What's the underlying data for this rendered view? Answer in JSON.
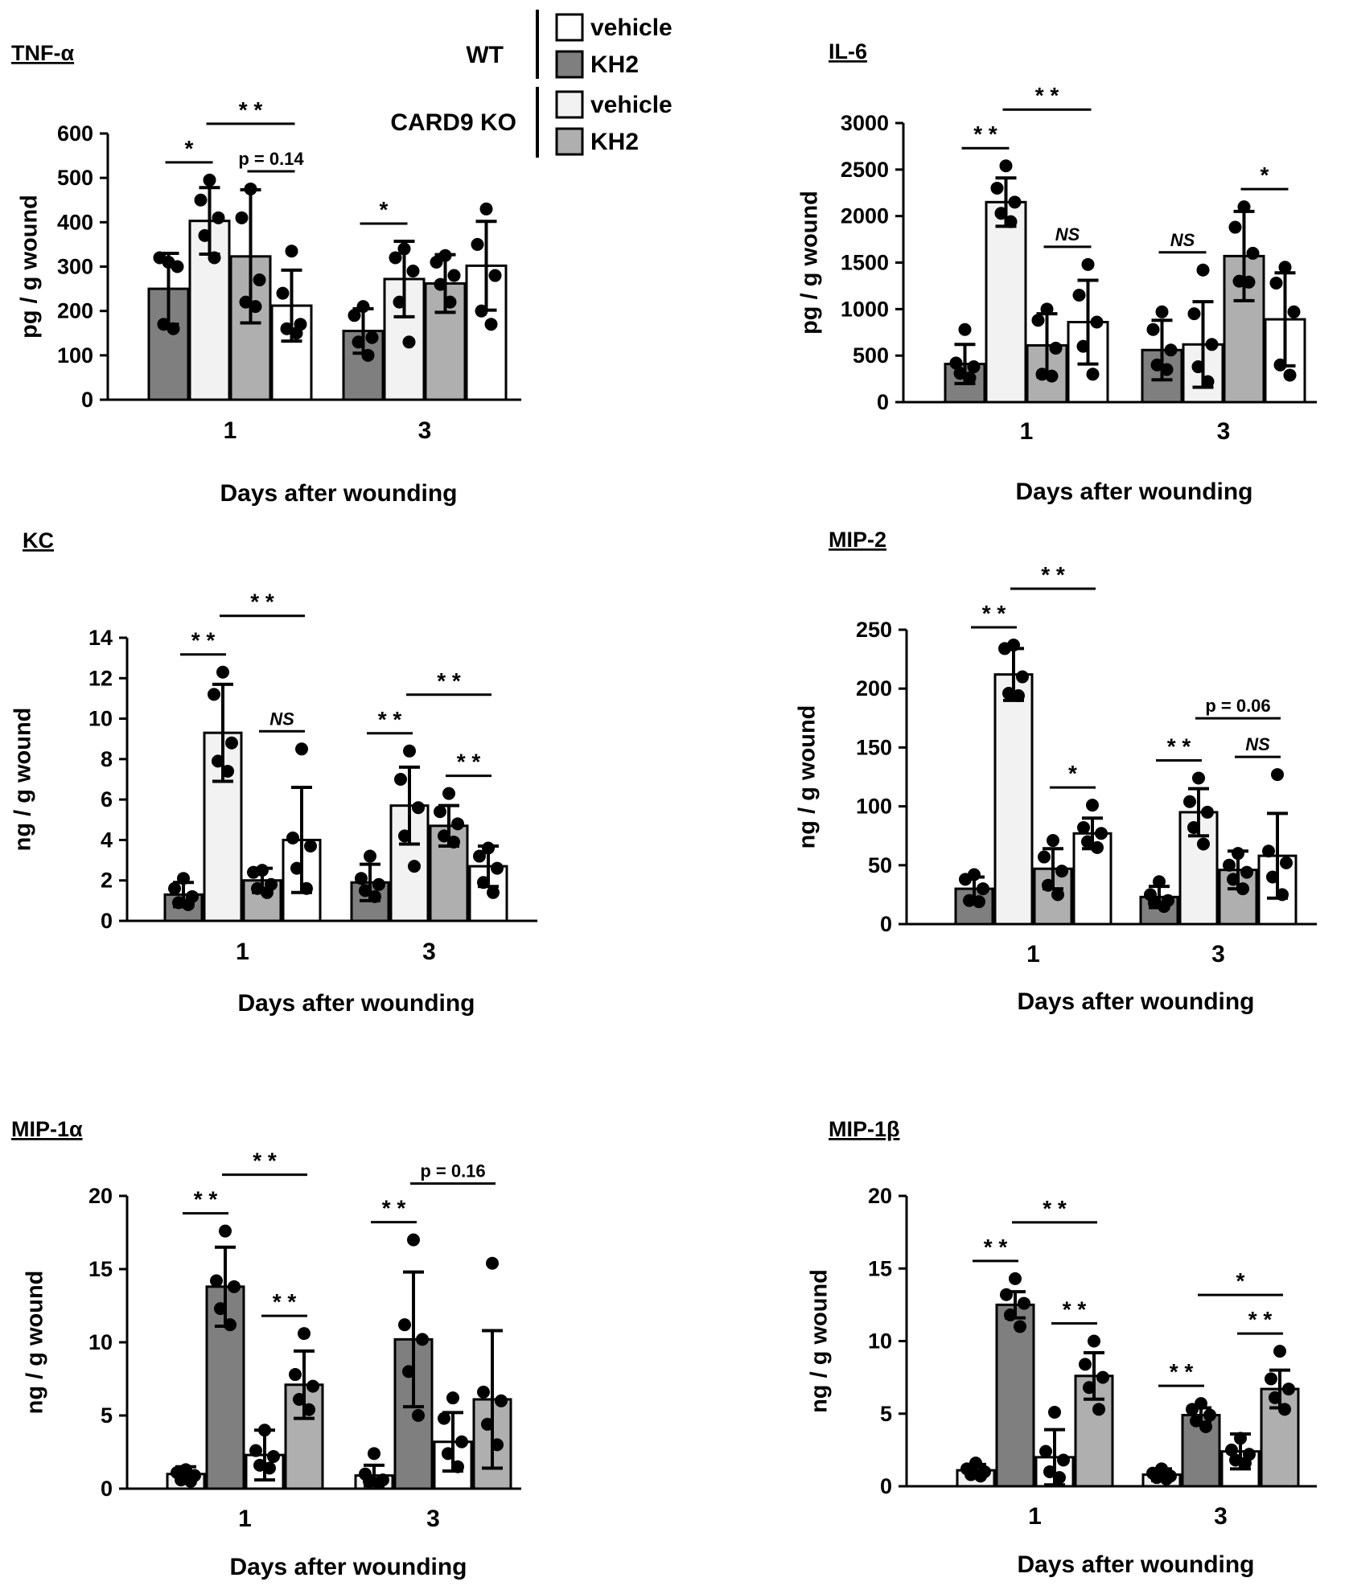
{
  "legend": {
    "groups": [
      {
        "label": "WT",
        "entries": [
          {
            "label": "vehicle",
            "color": "#ffffff"
          },
          {
            "label": "KH2",
            "color": "#7f7f7f"
          }
        ]
      },
      {
        "label": "CARD9 KO",
        "entries": [
          {
            "label": "vehicle",
            "color": "#f2f2f2"
          },
          {
            "label": "KH2",
            "color": "#afafaf"
          }
        ]
      }
    ]
  },
  "colors": {
    "wt_vehicle": "#ffffff",
    "wt_kh2": "#7f7f7f",
    "ko_vehicle": "#f2f2f2",
    "ko_kh2": "#afafaf",
    "stroke": "#000000"
  },
  "chart_data": [
    {
      "type": "bar",
      "title": "TNF-α",
      "ylabel": "pg / g wound",
      "xlabel": "Days after wounding",
      "categories": [
        "1",
        "3"
      ],
      "ylim": [
        0,
        600
      ],
      "yticks": [
        0,
        100,
        200,
        300,
        400,
        500,
        600
      ],
      "series": [
        {
          "name": "KH2 (WT)",
          "color": "#7f7f7f",
          "values": [
            250,
            155
          ],
          "errors": [
            80,
            50
          ],
          "points": [
            [
              310,
              320,
              300,
              170,
              160
            ],
            [
              210,
              190,
              140,
              130,
              100
            ]
          ]
        },
        {
          "name": "vehicle (CARD9 KO)",
          "color": "#f2f2f2",
          "values": [
            403,
            272
          ],
          "errors": [
            75,
            85
          ],
          "points": [
            [
              495,
              450,
              410,
              370,
              320
            ],
            [
              340,
              320,
              290,
              220,
              130
            ]
          ]
        },
        {
          "name": "KH2 (CARD9 KO)",
          "color": "#afafaf",
          "values": [
            323,
            262
          ],
          "errors": [
            150,
            65
          ],
          "points": [
            [
              475,
              410,
              270,
              220,
              210
            ],
            [
              325,
              310,
              280,
              260,
              220
            ]
          ]
        },
        {
          "name": "vehicle (WT)",
          "color": "#ffffff",
          "values": [
            212,
            302
          ],
          "errors": [
            80,
            100
          ],
          "points": [
            [
              335,
              240,
              170,
              160,
              150
            ],
            [
              430,
              350,
              280,
              200,
              170
            ]
          ]
        }
      ],
      "significance": [
        {
          "group": 0,
          "from": 0,
          "to": 1,
          "label": "*"
        },
        {
          "group": 0,
          "from": 1,
          "to": 3,
          "label": "* *"
        },
        {
          "group": 0,
          "from": 2,
          "to": 3,
          "label": "p = 0.14"
        },
        {
          "group": 1,
          "from": 0,
          "to": 1,
          "label": "*"
        }
      ]
    },
    {
      "type": "bar",
      "title": "IL-6",
      "ylabel": "pg / g wound",
      "xlabel": "Days after wounding",
      "categories": [
        "1",
        "3"
      ],
      "ylim": [
        0,
        3000
      ],
      "yticks": [
        0,
        500,
        1000,
        1500,
        2000,
        2500,
        3000
      ],
      "series": [
        {
          "name": "KH2 (WT)",
          "color": "#7f7f7f",
          "values": [
            410,
            560
          ],
          "errors": [
            210,
            320
          ],
          "points": [
            [
              780,
              420,
              380,
              310,
              260
            ],
            [
              970,
              780,
              560,
              400,
              350
            ]
          ]
        },
        {
          "name": "vehicle (CARD9 KO)",
          "color": "#f2f2f2",
          "values": [
            2150,
            620
          ],
          "errors": [
            260,
            460
          ],
          "points": [
            [
              2540,
              2300,
              2150,
              2030,
              1940
            ],
            [
              1420,
              950,
              620,
              380,
              220
            ]
          ]
        },
        {
          "name": "KH2 (CARD9 KO)",
          "color": "#afafaf",
          "values": [
            610,
            1570
          ],
          "errors": [
            340,
            480
          ],
          "points": [
            [
              1000,
              880,
              580,
              300,
              280
            ],
            [
              2100,
              1880,
              1600,
              1300,
              1290
            ]
          ]
        },
        {
          "name": "vehicle (WT)",
          "color": "#ffffff",
          "values": [
            860,
            890
          ],
          "errors": [
            450,
            500
          ],
          "points": [
            [
              1480,
              1150,
              860,
              600,
              300
            ],
            [
              1450,
              1280,
              970,
              400,
              290
            ]
          ]
        }
      ],
      "significance": [
        {
          "group": 0,
          "from": 0,
          "to": 1,
          "label": "* *"
        },
        {
          "group": 0,
          "from": 1,
          "to": 3,
          "label": "* *"
        },
        {
          "group": 0,
          "from": 2,
          "to": 3,
          "label": "NS"
        },
        {
          "group": 1,
          "from": 0,
          "to": 1,
          "label": "NS"
        },
        {
          "group": 1,
          "from": 2,
          "to": 3,
          "label": "*"
        }
      ]
    },
    {
      "type": "bar",
      "title": "KC",
      "ylabel": "ng / g wound",
      "xlabel": "Days after wounding",
      "categories": [
        "1",
        "3"
      ],
      "ylim": [
        0,
        14
      ],
      "yticks": [
        0,
        2,
        4,
        6,
        8,
        10,
        12,
        14
      ],
      "series": [
        {
          "name": "KH2 (WT)",
          "color": "#7f7f7f",
          "values": [
            1.3,
            1.9
          ],
          "errors": [
            0.6,
            0.9
          ],
          "points": [
            [
              2.1,
              1.6,
              1.2,
              0.9,
              0.8
            ],
            [
              3.2,
              2.1,
              1.8,
              1.5,
              1.2
            ]
          ]
        },
        {
          "name": "vehicle (CARD9 KO)",
          "color": "#f2f2f2",
          "values": [
            9.3,
            5.7
          ],
          "errors": [
            2.4,
            1.9
          ],
          "points": [
            [
              12.3,
              11.2,
              8.8,
              7.9,
              7.4
            ],
            [
              8.4,
              7.0,
              5.6,
              4.2,
              2.7
            ]
          ]
        },
        {
          "name": "KH2 (CARD9 KO)",
          "color": "#afafaf",
          "values": [
            2.0,
            4.7
          ],
          "errors": [
            0.6,
            1.0
          ],
          "points": [
            [
              2.5,
              2.4,
              1.8,
              1.6,
              1.4
            ],
            [
              6.3,
              5.4,
              4.8,
              4.2,
              3.9
            ]
          ]
        },
        {
          "name": "vehicle (WT)",
          "color": "#ffffff",
          "values": [
            4.0,
            2.7
          ],
          "errors": [
            2.6,
            1.0
          ],
          "points": [
            [
              8.5,
              4.1,
              3.7,
              2.6,
              1.6
            ],
            [
              3.6,
              3.2,
              2.6,
              1.9,
              1.4
            ]
          ]
        }
      ],
      "significance": [
        {
          "group": 0,
          "from": 0,
          "to": 1,
          "label": "* *"
        },
        {
          "group": 0,
          "from": 1,
          "to": 3,
          "label": "* *"
        },
        {
          "group": 0,
          "from": 2,
          "to": 3,
          "label": "NS"
        },
        {
          "group": 1,
          "from": 0,
          "to": 1,
          "label": "* *"
        },
        {
          "group": 1,
          "from": 1,
          "to": 3,
          "label": "* *"
        },
        {
          "group": 1,
          "from": 2,
          "to": 3,
          "label": "* *"
        }
      ]
    },
    {
      "type": "bar",
      "title": "MIP-2",
      "ylabel": "ng / g wound",
      "xlabel": "Days after wounding",
      "categories": [
        "1",
        "3"
      ],
      "ylim": [
        0,
        250
      ],
      "yticks": [
        0,
        50,
        100,
        150,
        200,
        250
      ],
      "series": [
        {
          "name": "KH2 (WT)",
          "color": "#7f7f7f",
          "values": [
            30,
            23
          ],
          "errors": [
            10,
            9
          ],
          "points": [
            [
              42,
              38,
              30,
              20,
              19
            ],
            [
              36,
              25,
              20,
              18,
              15
            ]
          ]
        },
        {
          "name": "vehicle (CARD9 KO)",
          "color": "#f2f2f2",
          "values": [
            212,
            95
          ],
          "errors": [
            22,
            20
          ],
          "points": [
            [
              237,
              234,
              210,
              196,
              194
            ],
            [
              124,
              104,
              95,
              82,
              68
            ]
          ]
        },
        {
          "name": "KH2 (CARD9 KO)",
          "color": "#afafaf",
          "values": [
            47,
            46
          ],
          "errors": [
            17,
            16
          ],
          "points": [
            [
              71,
              57,
              45,
              33,
              25
            ],
            [
              60,
              50,
              44,
              38,
              30
            ]
          ]
        },
        {
          "name": "vehicle (WT)",
          "color": "#ffffff",
          "values": [
            77,
            58
          ],
          "errors": [
            13,
            36
          ],
          "points": [
            [
              101,
              82,
              77,
              70,
              65
            ],
            [
              127,
              62,
              52,
              40,
              25
            ]
          ]
        }
      ],
      "significance": [
        {
          "group": 0,
          "from": 0,
          "to": 1,
          "label": "* *"
        },
        {
          "group": 0,
          "from": 1,
          "to": 3,
          "label": "* *"
        },
        {
          "group": 0,
          "from": 2,
          "to": 3,
          "label": "*"
        },
        {
          "group": 1,
          "from": 0,
          "to": 1,
          "label": "* *"
        },
        {
          "group": 1,
          "from": 1,
          "to": 3,
          "label": "p = 0.06"
        },
        {
          "group": 1,
          "from": 2,
          "to": 3,
          "label": "NS"
        }
      ]
    },
    {
      "type": "bar",
      "title": "MIP-1α",
      "ylabel": "ng / g wound",
      "xlabel": "Days after wounding",
      "categories": [
        "1",
        "3"
      ],
      "ylim": [
        0,
        20
      ],
      "yticks": [
        0,
        5,
        10,
        15,
        20
      ],
      "series": [
        {
          "name": "vehicle (CARD9 KO)",
          "color": "#f2f2f2",
          "values": [
            1.0,
            0.9
          ],
          "errors": [
            0.5,
            0.7
          ],
          "points": [
            [
              1.3,
              1.1,
              0.9,
              0.6,
              0.5
            ],
            [
              2.4,
              1.0,
              0.6,
              0.5,
              0.4
            ]
          ]
        },
        {
          "name": "KH2 (WT)",
          "color": "#7f7f7f",
          "values": [
            13.8,
            10.2
          ],
          "errors": [
            2.7,
            4.6
          ],
          "points": [
            [
              17.6,
              14.2,
              13.8,
              12.3,
              11.2
            ],
            [
              17.0,
              11.2,
              10.2,
              8.0,
              5.0
            ]
          ]
        },
        {
          "name": "vehicle (WT)",
          "color": "#ffffff",
          "values": [
            2.3,
            3.2
          ],
          "errors": [
            1.7,
            2.0
          ],
          "points": [
            [
              4.0,
              2.6,
              2.2,
              1.6,
              1.4
            ],
            [
              6.2,
              4.8,
              3.2,
              2.4,
              1.5
            ]
          ]
        },
        {
          "name": "KH2 (CARD9 KO)",
          "color": "#afafaf",
          "values": [
            7.1,
            6.1
          ],
          "errors": [
            2.3,
            4.7
          ],
          "points": [
            [
              10.6,
              7.8,
              7.0,
              6.1,
              5.4
            ],
            [
              15.4,
              6.6,
              6.0,
              4.4,
              3.0
            ]
          ]
        }
      ],
      "significance": [
        {
          "group": 0,
          "from": 0,
          "to": 1,
          "label": "* *"
        },
        {
          "group": 0,
          "from": 1,
          "to": 3,
          "label": "* *"
        },
        {
          "group": 0,
          "from": 2,
          "to": 3,
          "label": "* *"
        },
        {
          "group": 1,
          "from": 0,
          "to": 1,
          "label": "* *"
        },
        {
          "group": 1,
          "from": 1,
          "to": 3,
          "label": "p  =  0.16"
        }
      ]
    },
    {
      "type": "bar",
      "title": "MIP-1β",
      "ylabel": "ng / g wound",
      "xlabel": "Days after wounding",
      "categories": [
        "1",
        "3"
      ],
      "ylim": [
        0,
        20
      ],
      "yticks": [
        0,
        5,
        10,
        15,
        20
      ],
      "series": [
        {
          "name": "vehicle (CARD9 KO)",
          "color": "#f2f2f2",
          "values": [
            1.1,
            0.8
          ],
          "errors": [
            0.4,
            0.4
          ],
          "points": [
            [
              1.6,
              1.2,
              1.0,
              0.8,
              0.7
            ],
            [
              1.2,
              0.9,
              0.7,
              0.6,
              0.5
            ]
          ]
        },
        {
          "name": "KH2 (WT)",
          "color": "#7f7f7f",
          "values": [
            12.5,
            4.9
          ],
          "errors": [
            0.9,
            0.5
          ],
          "points": [
            [
              14.3,
              13.2,
              12.6,
              11.8,
              11.0
            ],
            [
              5.7,
              5.3,
              4.9,
              4.5,
              4.1
            ]
          ]
        },
        {
          "name": "vehicle (WT)",
          "color": "#ffffff",
          "values": [
            2.0,
            2.4
          ],
          "errors": [
            1.9,
            1.2
          ],
          "points": [
            [
              5.1,
              2.4,
              1.8,
              1.0,
              0.6
            ],
            [
              3.3,
              2.5,
              2.2,
              1.8,
              1.6
            ]
          ]
        },
        {
          "name": "KH2 (CARD9 KO)",
          "color": "#afafaf",
          "values": [
            7.6,
            6.7
          ],
          "errors": [
            1.6,
            1.3
          ],
          "points": [
            [
              10.0,
              8.4,
              7.5,
              6.8,
              5.3
            ],
            [
              9.3,
              7.4,
              6.7,
              6.1,
              5.3
            ]
          ]
        }
      ],
      "significance": [
        {
          "group": 0,
          "from": 0,
          "to": 1,
          "label": "* *"
        },
        {
          "group": 0,
          "from": 1,
          "to": 3,
          "label": "* *"
        },
        {
          "group": 0,
          "from": 2,
          "to": 3,
          "label": "* *"
        },
        {
          "group": 1,
          "from": 0,
          "to": 1,
          "label": "* *"
        },
        {
          "group": 1,
          "from": 1,
          "to": 3,
          "label": "*"
        },
        {
          "group": 1,
          "from": 2,
          "to": 3,
          "label": "* *"
        }
      ]
    }
  ]
}
